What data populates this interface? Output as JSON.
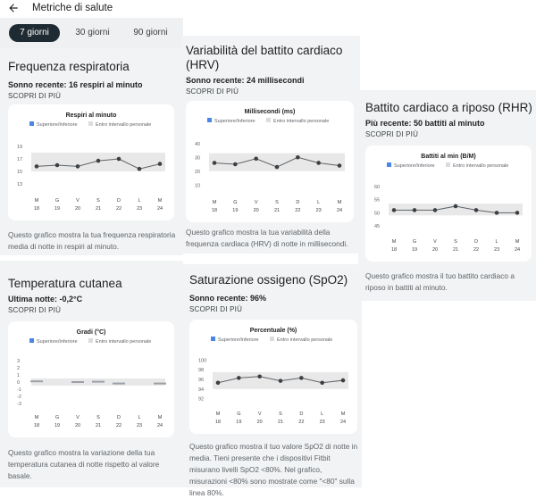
{
  "header": {
    "title": "Metriche di salute"
  },
  "tabs": [
    {
      "label": "7 giorni",
      "active": true
    },
    {
      "label": "30 giorni",
      "active": false
    },
    {
      "label": "90 giorni",
      "active": false
    }
  ],
  "colors": {
    "accent": "#4a86e8",
    "band": "#e8e8e8",
    "line": "#5f6368",
    "tab_active": "#1f2b33"
  },
  "legend": {
    "range": "Superiore/Inferiore",
    "personal": "Entro intervallo personale"
  },
  "days": {
    "letters": [
      "M",
      "G",
      "V",
      "S",
      "D",
      "L",
      "M"
    ],
    "numbers": [
      "18",
      "19",
      "20",
      "21",
      "22",
      "23",
      "24"
    ]
  },
  "respiratory": {
    "title": "Frequenza respiratoria",
    "recent": "Sonno recente: 16 respiri al minuto",
    "more": "SCOPRI DI PIÙ",
    "description": "Questo grafico mostra la tua frequenza respiratoria media di notte in respiri al minuto."
  },
  "hrv": {
    "title": "Variabilità del battito cardiaco (HRV)",
    "recent": "Sonno recente: 24 millisecondi",
    "more": "SCOPRI DI PIÙ",
    "description": "Questo grafico mostra la tua variabilità della frequenza cardiaca (HRV) di notte in millisecondi."
  },
  "rhr": {
    "title": "Battito cardiaco a riposo (RHR)",
    "recent": "Più recente: 50 battiti al minuto",
    "more": "SCOPRI DI PIÙ",
    "description": "Questo grafico mostra il tuo battito cardiaco a riposo in battiti al minuto."
  },
  "skin": {
    "title": "Temperatura cutanea",
    "recent": "Ultima notte: -0,2°C",
    "more": "SCOPRI DI PIÙ",
    "description": "Questo grafico mostra la variazione della tua temperatura cutanea di notte rispetto al valore basale."
  },
  "spo2": {
    "title": "Saturazione ossigeno (SpO2)",
    "recent": "Sonno recente: 96%",
    "more": "SCOPRI DI PIÙ",
    "description": "Questo grafico mostra il tuo valore SpO2 di notte in media. Tieni presente che i dispositivi Fitbit misurano livelli SpO2 <80%. Nel grafico, misurazioni <80% sono mostrate come \"<80\" sulla linea 80%."
  },
  "chart_data": [
    {
      "id": "respiratory",
      "type": "line",
      "title": "Respiri al minuto",
      "categories": [
        "M 18",
        "G 19",
        "V 20",
        "S 21",
        "D 22",
        "L 23",
        "M 24"
      ],
      "values": [
        15.8,
        16.0,
        15.8,
        16.7,
        17.0,
        15.4,
        16.2
      ],
      "yticks": [
        19,
        17,
        15,
        13
      ],
      "ylim": [
        12,
        20
      ],
      "band": [
        15,
        18
      ],
      "legend": [
        "Superiore/Inferiore",
        "Entro intervallo personale"
      ]
    },
    {
      "id": "hrv",
      "type": "line",
      "title": "Millisecondi (ms)",
      "categories": [
        "M 18",
        "G 19",
        "V 20",
        "S 21",
        "D 22",
        "L 23",
        "M 24"
      ],
      "values": [
        26,
        25,
        29,
        23,
        30,
        26,
        24
      ],
      "yticks": [
        40,
        30,
        20,
        10
      ],
      "ylim": [
        5,
        45
      ],
      "band": [
        20,
        33
      ],
      "legend": [
        "Superiore/Inferiore",
        "Entro intervallo personale"
      ]
    },
    {
      "id": "rhr",
      "type": "line",
      "title": "Battiti al min (B/M)",
      "categories": [
        "M 18",
        "G 19",
        "V 20",
        "S 21",
        "D 22",
        "L 23",
        "M 24"
      ],
      "values": [
        51,
        51,
        51,
        52.5,
        51,
        50,
        50
      ],
      "yticks": [
        60,
        55,
        50,
        45
      ],
      "ylim": [
        43,
        62
      ],
      "band": [
        49,
        53.5
      ],
      "legend": [
        "Superiore/Inferiore",
        "Entro intervallo personale"
      ]
    },
    {
      "id": "skin",
      "type": "bar",
      "title": "Gradi (°C)",
      "categories": [
        "M 18",
        "G 19",
        "V 20",
        "S 21",
        "D 22",
        "L 23",
        "M 24"
      ],
      "values": [
        0.1,
        null,
        0.0,
        0.05,
        -0.2,
        null,
        -0.2
      ],
      "yticks": [
        3,
        2,
        1,
        0,
        -1,
        -2,
        -3
      ],
      "ylim": [
        -3.5,
        3.5
      ],
      "band": [
        -0.5,
        0.5
      ],
      "legend": [
        "Superiore/Inferiore",
        "Entro intervallo personale"
      ]
    },
    {
      "id": "spo2",
      "type": "line",
      "title": "Percentuale (%)",
      "categories": [
        "M 18",
        "G 19",
        "V 20",
        "S 21",
        "D 22",
        "L 23",
        "M 24"
      ],
      "values": [
        95.3,
        96.3,
        96.6,
        95.7,
        96.3,
        95.3,
        95.8
      ],
      "yticks": [
        100,
        98,
        96,
        94,
        92
      ],
      "ylim": [
        91,
        101
      ],
      "band": [
        94,
        97.5
      ],
      "legend": [
        "Superiore/Inferiore",
        "Entro intervallo personale"
      ]
    }
  ]
}
